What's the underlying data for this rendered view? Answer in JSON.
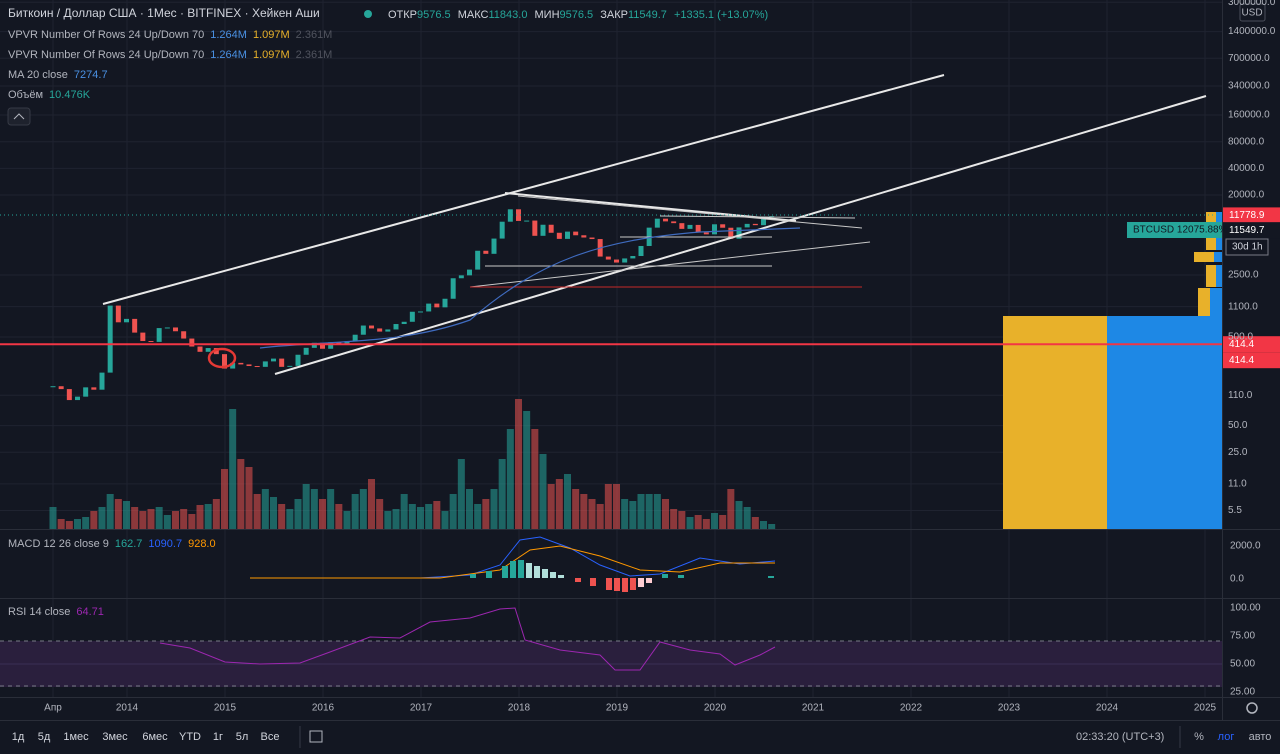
{
  "header": {
    "symbol": "Биткоин / Доллар США · 1Мес · BITFINEX · Хейкен Аши",
    "open_label": "ОТКР",
    "open": "9576.5",
    "high_label": "МАКС",
    "high": "11843.0",
    "low_label": "МИН",
    "low": "9576.5",
    "close_label": "ЗАКР",
    "close": "11549.7",
    "change": "+1335.1 (+13.07%)"
  },
  "indicators": [
    {
      "name": "VPVR Number Of Rows 24 Up/Down 70",
      "values": [
        "1.264M",
        "1.097M",
        "2.361M"
      ]
    },
    {
      "name": "VPVR Number Of Rows 24 Up/Down 70",
      "values": [
        "1.264M",
        "1.097M",
        "2.361M"
      ]
    },
    {
      "name": "MA 20 close",
      "values": [
        "7274.7"
      ]
    },
    {
      "name": "Объём",
      "values": [
        "10.476K"
      ]
    }
  ],
  "price_axis": {
    "currency": "USD",
    "log": true,
    "ylim": [
      3.4,
      3180000
    ],
    "ticks": [
      {
        "value": 3000000,
        "label": "3000000.0"
      },
      {
        "value": 1400000,
        "label": "1400000.0"
      },
      {
        "value": 700000,
        "label": "700000.0"
      },
      {
        "value": 340000,
        "label": "340000.0"
      },
      {
        "value": 160000,
        "label": "160000.0"
      },
      {
        "value": 80000,
        "label": "80000.0"
      },
      {
        "value": 40000,
        "label": "40000.0"
      },
      {
        "value": 20000,
        "label": "20000.0"
      },
      {
        "value": 2500,
        "label": "2500.0"
      },
      {
        "value": 1100,
        "label": "1100.0"
      },
      {
        "value": 500,
        "label": "500.0"
      },
      {
        "value": 110,
        "label": "110.0"
      },
      {
        "value": 50,
        "label": "50.0"
      },
      {
        "value": 25,
        "label": "25.0"
      },
      {
        "value": 11,
        "label": "11.0"
      },
      {
        "value": 5.5,
        "label": "5.5"
      }
    ],
    "badges": [
      {
        "value": 11778.9,
        "label": "11778.9"
      },
      {
        "value": 11549.7,
        "label": "11549.7"
      },
      {
        "value": 414.4,
        "label": "414.4"
      },
      {
        "value": 414.4,
        "label": "414.4"
      }
    ],
    "btcusd_badge": "BTCUSD 12075.88%",
    "countdown": "30d 1h"
  },
  "price_series": {
    "type": "candlestick",
    "up_color": "#26a69a",
    "down_color": "#ef5350",
    "closes": [
      139,
      129,
      97,
      106,
      135,
      127,
      198,
      1130,
      732,
      800,
      560,
      450,
      440,
      630,
      640,
      580,
      480,
      390,
      340,
      375,
      320,
      220,
      255,
      245,
      235,
      230,
      265,
      285,
      230,
      236,
      315,
      377,
      430,
      368,
      437,
      416,
      448,
      530,
      673,
      624,
      575,
      608,
      700,
      742,
      963,
      970,
      1190,
      1080,
      1350,
      2300,
      2480,
      2880,
      4700,
      4340,
      6450,
      10000,
      13800,
      10200,
      10300,
      6930,
      9240,
      7500,
      6400,
      7730,
      7030,
      6630,
      6370,
      4040,
      3740,
      3460,
      3850,
      4100,
      5320,
      8570,
      10820,
      10080,
      9630,
      8300,
      9200,
      7570,
      7200,
      9350,
      8550,
      6420,
      8620,
      9450,
      9140,
      11350,
      11550
    ],
    "volumes": [
      22,
      10,
      8,
      10,
      12,
      18,
      22,
      35,
      30,
      28,
      22,
      18,
      20,
      22,
      14,
      18,
      20,
      15,
      24,
      25,
      30,
      60,
      120,
      70,
      62,
      35,
      40,
      32,
      25,
      20,
      30,
      45,
      40,
      30,
      40,
      25,
      18,
      35,
      40,
      50,
      30,
      18,
      20,
      35,
      25,
      22,
      25,
      28,
      18,
      35,
      70,
      40,
      25,
      30,
      40,
      70,
      100,
      130,
      118,
      100,
      75,
      45,
      50,
      55,
      40,
      35,
      30,
      25,
      45,
      45,
      30,
      28,
      35,
      35,
      35,
      30,
      20,
      18,
      12,
      14,
      10,
      16,
      14,
      40,
      28,
      22,
      12,
      8,
      5
    ],
    "volume_lim": [
      0,
      132
    ]
  },
  "macd": {
    "name": "MACD 12 26 close 9",
    "values": [
      "162.7",
      "1090.7",
      "928.0"
    ],
    "ticks": [
      {
        "value": 2000,
        "label": "2000.0"
      },
      {
        "value": 0,
        "label": "0.0"
      }
    ]
  },
  "rsi": {
    "name": "RSI 14 close",
    "value": "64.71",
    "ticks": [
      {
        "value": 100,
        "label": "100.00"
      },
      {
        "value": 75,
        "label": "75.00"
      },
      {
        "value": 50,
        "label": "50.00"
      },
      {
        "value": 25,
        "label": "25.00"
      }
    ]
  },
  "time_axis": [
    "Апр",
    "2014",
    "2015",
    "2016",
    "2017",
    "2018",
    "2019",
    "2020",
    "2021",
    "2022",
    "2023",
    "2024",
    "2025"
  ],
  "toolbar": {
    "ranges": [
      "1д",
      "5д",
      "1мес",
      "3мес",
      "6мес",
      "YTD",
      "1г",
      "5л",
      "Все"
    ],
    "clock": "02:33:20 (UTC+3)",
    "options": [
      "%",
      "лог",
      "авто"
    ]
  }
}
